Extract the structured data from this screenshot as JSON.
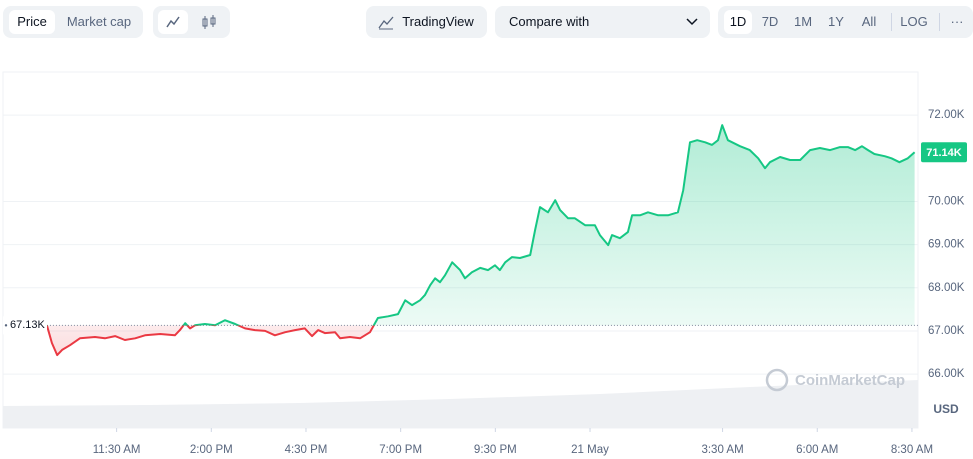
{
  "toolbar": {
    "view_tabs": [
      "Price",
      "Market cap"
    ],
    "tradingview": "TradingView",
    "compare": "Compare with",
    "ranges": [
      "1D",
      "7D",
      "1M",
      "1Y",
      "All",
      "LOG"
    ],
    "more": "···"
  },
  "chart_data": {
    "type": "line",
    "color": "#16c784",
    "down_color": "#ea3943",
    "x": [
      9.66,
      9.79,
      9.93,
      10.06,
      10.27,
      10.53,
      10.93,
      11.19,
      11.46,
      11.72,
      11.99,
      12.25,
      12.65,
      13.04,
      13.17,
      13.31,
      13.44,
      13.57,
      13.83,
      14.1,
      14.36,
      14.63,
      14.89,
      15.15,
      15.42,
      15.68,
      15.95,
      16.21,
      16.47,
      16.66,
      16.82,
      17.0,
      17.27,
      17.4,
      17.66,
      17.93,
      18.19,
      18.4,
      18.67,
      18.93,
      19.12,
      19.3,
      19.51,
      19.64,
      19.78,
      19.91,
      20.04,
      20.17,
      20.36,
      20.57,
      20.7,
      20.88,
      21.1,
      21.31,
      21.49,
      21.62,
      21.76,
      21.94,
      22.15,
      22.42,
      22.55,
      22.68,
      22.89,
      23.08,
      23.21,
      23.42,
      23.6,
      23.87,
      24.13,
      24.26,
      24.48,
      24.58,
      24.79,
      25.0,
      25.11,
      25.32,
      25.53,
      25.8,
      26.06,
      26.32,
      26.46,
      26.64,
      26.83,
      27.04,
      27.22,
      27.38,
      27.49,
      27.64,
      27.96,
      28.22,
      28.44,
      28.62,
      28.75,
      29.02,
      29.28,
      29.55,
      29.81,
      30.07,
      30.34,
      30.6,
      30.81,
      31.0,
      31.18,
      31.34,
      31.51,
      31.78,
      31.96,
      32.17,
      32.39,
      32.57
    ],
    "values": [
      67.13,
      66.72,
      66.44,
      66.56,
      66.67,
      66.83,
      66.86,
      66.83,
      66.88,
      66.79,
      66.83,
      66.9,
      66.93,
      66.9,
      67.02,
      67.18,
      67.06,
      67.13,
      67.16,
      67.13,
      67.25,
      67.16,
      67.06,
      67.02,
      67.0,
      66.9,
      66.97,
      67.02,
      67.06,
      66.88,
      67.02,
      66.95,
      66.97,
      66.83,
      66.86,
      66.83,
      66.97,
      67.3,
      67.34,
      67.39,
      67.71,
      67.6,
      67.71,
      67.83,
      68.06,
      68.22,
      68.13,
      68.29,
      68.59,
      68.41,
      68.22,
      68.36,
      68.46,
      68.41,
      68.52,
      68.41,
      68.59,
      68.71,
      68.69,
      68.76,
      69.34,
      69.87,
      69.75,
      70.03,
      69.8,
      69.61,
      69.61,
      69.45,
      69.45,
      69.22,
      68.99,
      69.22,
      69.15,
      69.29,
      69.68,
      69.68,
      69.75,
      69.68,
      69.68,
      69.75,
      70.26,
      71.37,
      71.42,
      71.37,
      71.31,
      71.42,
      71.77,
      71.42,
      71.28,
      71.19,
      71.0,
      70.77,
      70.91,
      71.03,
      70.96,
      70.96,
      71.19,
      71.24,
      71.19,
      71.26,
      71.26,
      71.19,
      71.28,
      71.19,
      71.1,
      71.05,
      71.0,
      70.91,
      71.0,
      71.14
    ],
    "xlim": [
      8.5,
      32.66
    ],
    "xticks": [
      {
        "value": 11.5,
        "label": "11:30 AM"
      },
      {
        "value": 14,
        "label": "2:00 PM"
      },
      {
        "value": 16.5,
        "label": "4:30 PM"
      },
      {
        "value": 19,
        "label": "7:00 PM"
      },
      {
        "value": 21.5,
        "label": "9:30 PM"
      },
      {
        "value": 24,
        "label": "21 May"
      },
      {
        "value": 27.5,
        "label": "3:30 AM"
      },
      {
        "value": 30,
        "label": "6:00 AM"
      },
      {
        "value": 32.5,
        "label": "8:30 AM"
      }
    ],
    "ylim": [
      65.4,
      73.0
    ],
    "yticks": [
      {
        "value": 66,
        "label": "66.00K"
      },
      {
        "value": 67,
        "label": "67.00K"
      },
      {
        "value": 68,
        "label": "68.00K"
      },
      {
        "value": 69,
        "label": "69.00K"
      },
      {
        "value": 70,
        "label": "70.00K"
      },
      {
        "value": 72,
        "label": "72.00K"
      }
    ],
    "y_unit": "USD",
    "baseline": {
      "value": 67.13,
      "label": "67.13K"
    },
    "current": {
      "value": 71.14,
      "label": "71.14K"
    },
    "watermark": "CoinMarketCap",
    "grid": true
  }
}
